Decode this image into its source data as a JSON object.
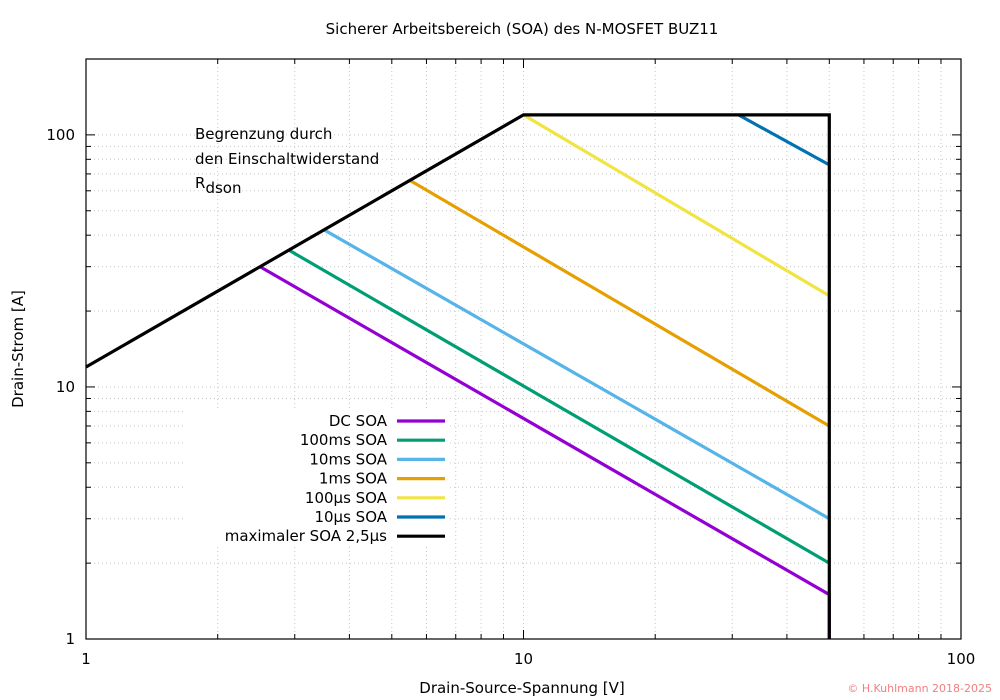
{
  "chart_data": {
    "type": "line",
    "title": "Sicherer Arbeitsbereich (SOA) des N-MOSFET BUZ11",
    "xlabel": "Drain-Source-Spannung [V]",
    "ylabel": "Drain-Strom [A]",
    "xscale": "log",
    "yscale": "log",
    "xlim": [
      1,
      100
    ],
    "ylim": [
      1,
      200
    ],
    "grid": true,
    "legend_position": "bottom-left",
    "x_ticks": [
      {
        "value": 1,
        "label": "1"
      },
      {
        "value": 10,
        "label": "10"
      },
      {
        "value": 100,
        "label": "100"
      }
    ],
    "y_ticks": [
      {
        "value": 1,
        "label": "1"
      },
      {
        "value": 10,
        "label": "10"
      },
      {
        "value": 100,
        "label": "100"
      }
    ],
    "annotation": {
      "lines": [
        "Begrenzung durch",
        "den Einschaltwiderstand"
      ],
      "rdson_main": "R",
      "rdson_sub": "dson"
    },
    "series": [
      {
        "name": "DC SOA",
        "color": "#9400d3",
        "points": [
          [
            2.5,
            30
          ],
          [
            50,
            1.5
          ],
          [
            50,
            1
          ]
        ]
      },
      {
        "name": "100ms SOA",
        "color": "#009e73",
        "points": [
          [
            2.9,
            35
          ],
          [
            50,
            2
          ]
        ]
      },
      {
        "name": "10ms SOA",
        "color": "#56b4e9",
        "points": [
          [
            3.5,
            42
          ],
          [
            50,
            3
          ]
        ]
      },
      {
        "name": "1ms SOA",
        "color": "#e69f00",
        "points": [
          [
            5.5,
            66
          ],
          [
            50,
            7
          ]
        ]
      },
      {
        "name": "100µs SOA",
        "color": "#f0e442",
        "points": [
          [
            10,
            120
          ],
          [
            50,
            23
          ]
        ]
      },
      {
        "name": "10µs SOA",
        "color": "#0072b2",
        "points": [
          [
            31,
            120
          ],
          [
            50,
            76
          ]
        ]
      },
      {
        "name": "maximaler SOA 2,5µs",
        "color": "#000000",
        "points": [
          [
            1,
            12
          ],
          [
            10,
            120
          ],
          [
            50,
            120
          ],
          [
            50,
            1
          ]
        ]
      }
    ]
  },
  "copyright": "© H.Kuhlmann 2018-2025"
}
